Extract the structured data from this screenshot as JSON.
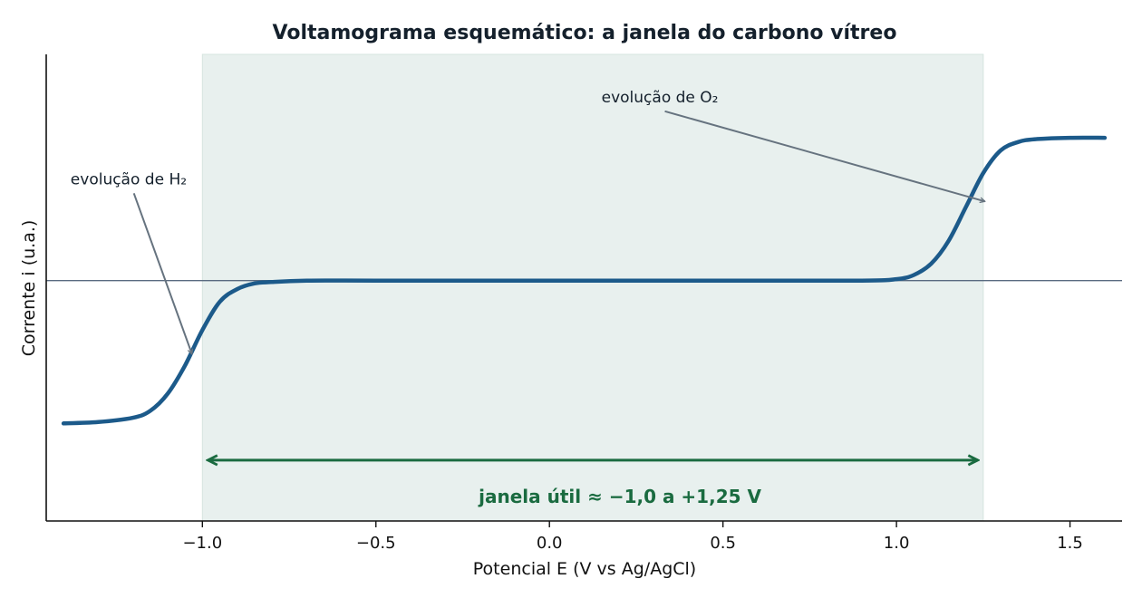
{
  "chart_data": {
    "type": "line",
    "title": "Voltamograma esquemático: a janela do carbono vítreo",
    "xlabel": "Potencial E (V vs Ag/AgCl)",
    "ylabel": "Corrente i (u.a.)",
    "xlim": [
      -1.45,
      1.65
    ],
    "ylim": [
      -1.7,
      1.6
    ],
    "x_ticks": [
      -1.0,
      -0.5,
      0.0,
      0.5,
      1.0,
      1.5
    ],
    "x_tick_labels": [
      "−1.0",
      "−0.5",
      "0.0",
      "0.5",
      "1.0",
      "1.5"
    ],
    "y_ticks_shown": false,
    "grid": false,
    "baseline_y": 0,
    "series": [
      {
        "color": "#1c5a8a",
        "x": [
          -1.4,
          -1.3,
          -1.2,
          -1.15,
          -1.1,
          -1.05,
          -1.0,
          -0.95,
          -0.9,
          -0.85,
          -0.8,
          -0.7,
          -0.5,
          0.0,
          0.5,
          0.9,
          1.0,
          1.05,
          1.1,
          1.15,
          1.2,
          1.25,
          1.3,
          1.35,
          1.4,
          1.5,
          1.6
        ],
        "y": [
          -1.01,
          -1.0,
          -0.97,
          -0.92,
          -0.8,
          -0.6,
          -0.35,
          -0.15,
          -0.06,
          -0.02,
          -0.01,
          0.0,
          0.0,
          0.0,
          0.0,
          0.0,
          0.01,
          0.04,
          0.12,
          0.28,
          0.52,
          0.76,
          0.92,
          0.98,
          1.0,
          1.01,
          1.01
        ]
      }
    ],
    "shaded_region": {
      "x_start": -1.0,
      "x_end": 1.25,
      "color": "#e8f0ee"
    },
    "window_arrow": {
      "x_start": -1.0,
      "x_end": 1.25,
      "y": -1.27,
      "color": "#1a6b40"
    },
    "window_label": "janela útil ≈ −1,0 a +1,25 V",
    "annotations": [
      {
        "text": "evolução de O₂",
        "text_x": 0.15,
        "text_y": 1.3,
        "arrow_x": 1.255,
        "arrow_y": 0.56
      },
      {
        "text": "evolução de H₂",
        "text_x": -1.38,
        "text_y": 0.72,
        "arrow_x": -1.03,
        "arrow_y": -0.52
      }
    ],
    "colors": {
      "axis": "#111111",
      "baseline": "#5a6b80",
      "annotation_arrow": "#66737f"
    }
  }
}
